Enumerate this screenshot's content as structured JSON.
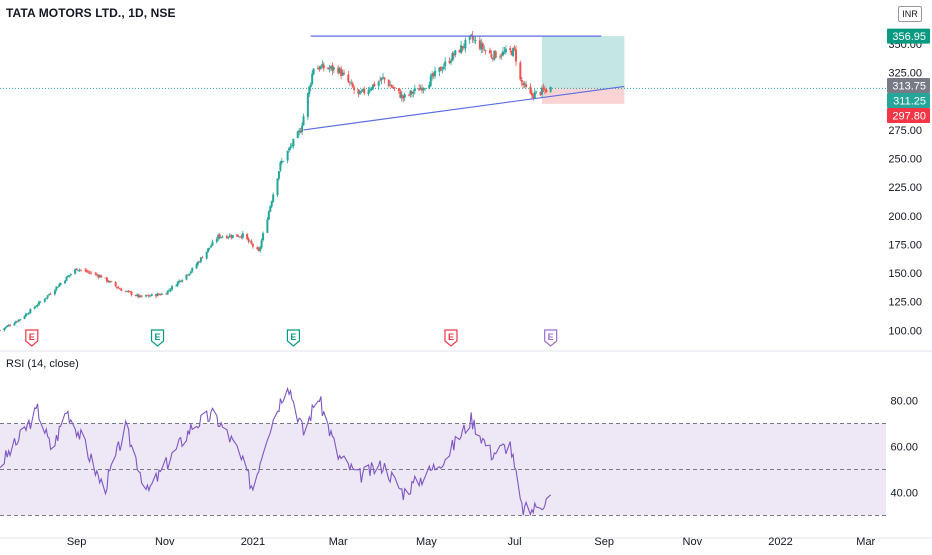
{
  "header": {
    "title": "TATA MOTORS LTD., 1D, NSE",
    "currency": "INR"
  },
  "rsi_panel": {
    "title": "RSI (14, close)"
  },
  "price_labels": {
    "target": "356.95",
    "high": "313.75",
    "last": "311.25",
    "stop": "297.80",
    "target_color": "#089981",
    "high_color": "#787b86",
    "last_color": "#26a69a",
    "stop_color": "#f23645"
  },
  "earnings_markers": [
    {
      "label": "E",
      "date": "2020-08-01",
      "color": "#f23645"
    },
    {
      "label": "E",
      "date": "2020-10-27",
      "color": "#089981"
    },
    {
      "label": "E",
      "date": "2021-01-29",
      "color": "#089981"
    },
    {
      "label": "E",
      "date": "2021-05-18",
      "color": "#f23645"
    },
    {
      "label": "E",
      "date": "2021-07-26",
      "color": "#9c6dd4"
    }
  ],
  "colors": {
    "up": "#26a69a",
    "down": "#ef5350",
    "trendline": "#5b6ee1",
    "rsi_line": "#7e57c2",
    "rsi_band": "#ede7f6",
    "target_zone": "#b2dfdb",
    "stop_zone": "#f8c5c5"
  },
  "chart_data": [
    {
      "type": "candlestick",
      "title": "TATA MOTORS LTD., 1D, NSE",
      "ylabel": "INR",
      "ylim": [
        88,
        378
      ],
      "y_ticks": [
        100,
        125,
        150,
        175,
        200,
        225,
        250,
        275,
        300,
        325,
        350
      ],
      "x_ticks": [
        "Sep",
        "Nov",
        "2021",
        "Mar",
        "May",
        "Jul",
        "Sep",
        "Nov",
        "2022",
        "Mar"
      ],
      "x_tick_dates": [
        "2020-09-01",
        "2020-11-01",
        "2021-01-01",
        "2021-03-01",
        "2021-05-01",
        "2021-07-01",
        "2021-09-01",
        "2021-11-01",
        "2022-01-01",
        "2022-03-01"
      ],
      "xlim": [
        "2020-07-10",
        "2022-03-15"
      ],
      "close_path": [
        {
          "date": "2020-07-10",
          "close": 100
        },
        {
          "date": "2020-07-24",
          "close": 110
        },
        {
          "date": "2020-08-10",
          "close": 128
        },
        {
          "date": "2020-08-20",
          "close": 140
        },
        {
          "date": "2020-09-01",
          "close": 154
        },
        {
          "date": "2020-09-18",
          "close": 147
        },
        {
          "date": "2020-10-01",
          "close": 136
        },
        {
          "date": "2020-10-15",
          "close": 129
        },
        {
          "date": "2020-11-01",
          "close": 132
        },
        {
          "date": "2020-11-20",
          "close": 153
        },
        {
          "date": "2020-12-08",
          "close": 182
        },
        {
          "date": "2020-12-25",
          "close": 183
        },
        {
          "date": "2021-01-05",
          "close": 168
        },
        {
          "date": "2021-01-20",
          "close": 245
        },
        {
          "date": "2021-02-03",
          "close": 275
        },
        {
          "date": "2021-02-12",
          "close": 330
        },
        {
          "date": "2021-03-01",
          "close": 328
        },
        {
          "date": "2021-03-15",
          "close": 305
        },
        {
          "date": "2021-04-01",
          "close": 320
        },
        {
          "date": "2021-04-15",
          "close": 303
        },
        {
          "date": "2021-05-01",
          "close": 315
        },
        {
          "date": "2021-05-18",
          "close": 338
        },
        {
          "date": "2021-06-01",
          "close": 355
        },
        {
          "date": "2021-06-15",
          "close": 340
        },
        {
          "date": "2021-07-01",
          "close": 344
        },
        {
          "date": "2021-07-05",
          "close": 318
        },
        {
          "date": "2021-07-12",
          "close": 305
        },
        {
          "date": "2021-07-26",
          "close": 311.25
        }
      ],
      "annotations": [
        {
          "kind": "horizontal_line",
          "price": 356.95,
          "from": "2021-02-10",
          "to": "2021-08-30"
        },
        {
          "kind": "trend_line",
          "from": {
            "date": "2021-02-05",
            "price": 275
          },
          "to": {
            "date": "2021-09-15",
            "price": 313
          }
        },
        {
          "kind": "target_zone",
          "from": "2021-07-20",
          "to": "2021-09-15",
          "price_from": 311.25,
          "price_to": 356.95
        },
        {
          "kind": "stop_zone",
          "from": "2021-07-20",
          "to": "2021-09-15",
          "price_from": 297.8,
          "price_to": 311.25
        }
      ],
      "price_labels": [
        356.95,
        313.75,
        311.25,
        297.8
      ],
      "grid": false
    },
    {
      "type": "line",
      "title": "RSI (14, close)",
      "ylim": [
        25,
        95
      ],
      "y_ticks": [
        40,
        60,
        80
      ],
      "bands": {
        "upper": 70,
        "middle": 50,
        "lower": 30
      },
      "series": [
        {
          "name": "RSI (14, close)",
          "points": [
            {
              "date": "2020-07-10",
              "value": 52
            },
            {
              "date": "2020-07-22",
              "value": 62
            },
            {
              "date": "2020-08-05",
              "value": 76
            },
            {
              "date": "2020-08-15",
              "value": 58
            },
            {
              "date": "2020-08-25",
              "value": 76
            },
            {
              "date": "2020-09-05",
              "value": 63
            },
            {
              "date": "2020-09-20",
              "value": 41
            },
            {
              "date": "2020-10-05",
              "value": 68
            },
            {
              "date": "2020-10-20",
              "value": 40
            },
            {
              "date": "2020-11-05",
              "value": 55
            },
            {
              "date": "2020-11-20",
              "value": 69
            },
            {
              "date": "2020-12-05",
              "value": 74
            },
            {
              "date": "2020-12-20",
              "value": 60
            },
            {
              "date": "2021-01-01",
              "value": 42
            },
            {
              "date": "2021-01-10",
              "value": 64
            },
            {
              "date": "2021-01-25",
              "value": 88
            },
            {
              "date": "2021-02-05",
              "value": 66
            },
            {
              "date": "2021-02-15",
              "value": 82
            },
            {
              "date": "2021-03-01",
              "value": 56
            },
            {
              "date": "2021-03-15",
              "value": 47
            },
            {
              "date": "2021-04-01",
              "value": 52
            },
            {
              "date": "2021-04-15",
              "value": 40
            },
            {
              "date": "2021-05-01",
              "value": 48
            },
            {
              "date": "2021-05-15",
              "value": 56
            },
            {
              "date": "2021-06-01",
              "value": 72
            },
            {
              "date": "2021-06-15",
              "value": 57
            },
            {
              "date": "2021-06-28",
              "value": 61
            },
            {
              "date": "2021-07-06",
              "value": 33
            },
            {
              "date": "2021-07-12",
              "value": 32
            },
            {
              "date": "2021-07-26",
              "value": 38
            }
          ]
        }
      ]
    }
  ]
}
